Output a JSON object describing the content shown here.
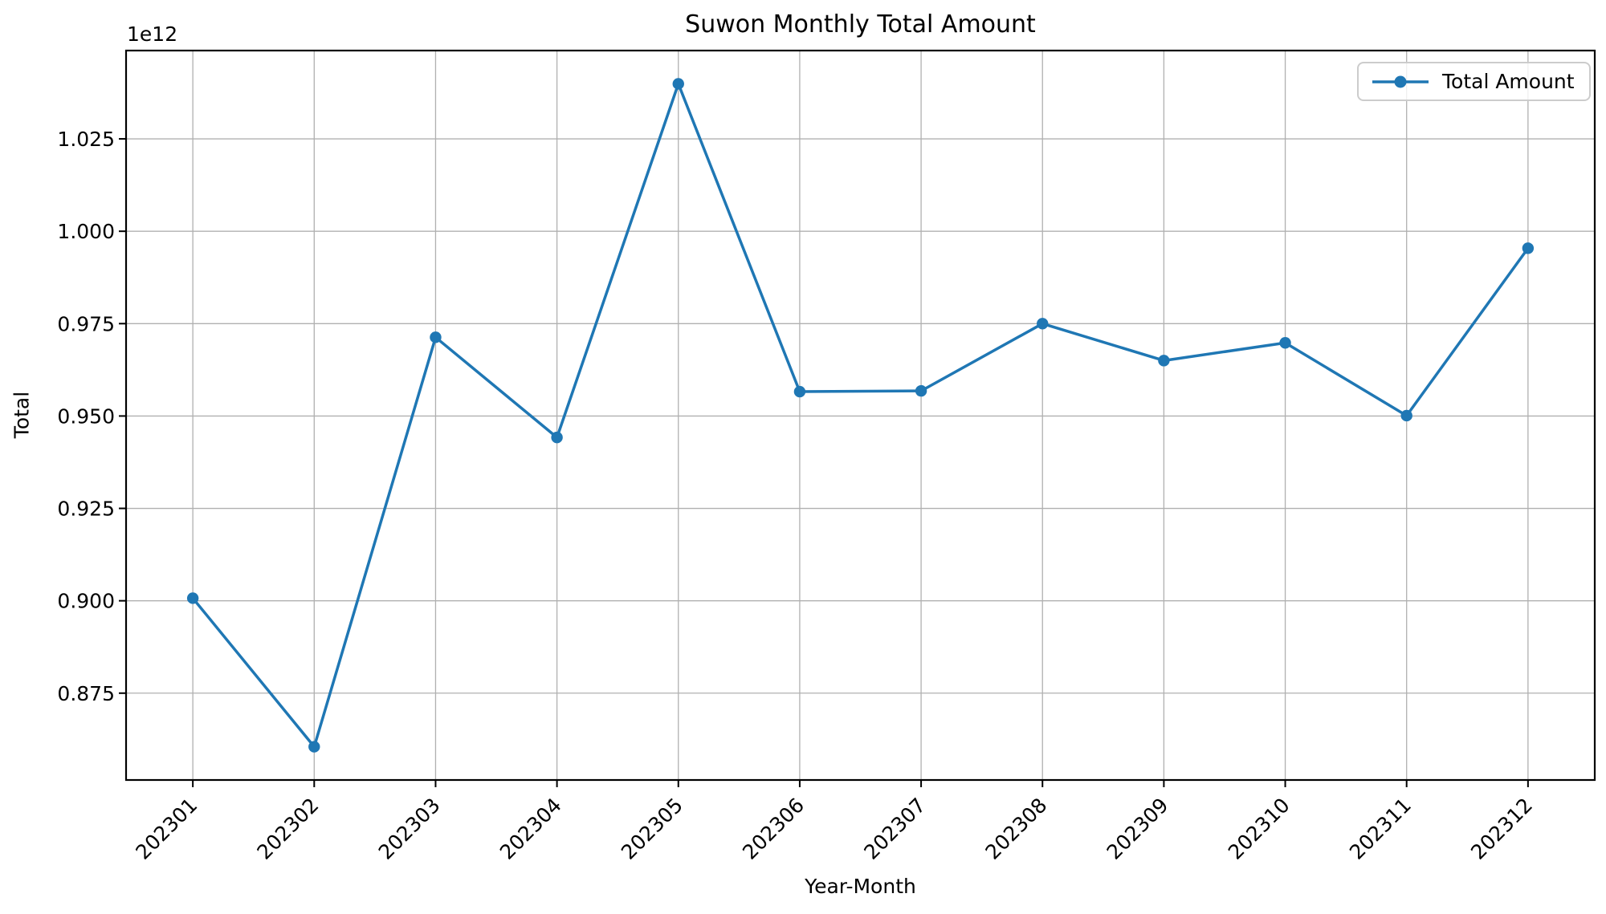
{
  "chart_data": {
    "type": "line",
    "title": "Suwon Monthly Total Amount",
    "xlabel": "Year-Month",
    "ylabel": "Total",
    "y_offset_text": "1e12",
    "categories": [
      "202301",
      "202302",
      "202303",
      "202304",
      "202305",
      "202306",
      "202307",
      "202308",
      "202309",
      "202310",
      "202311",
      "202312"
    ],
    "series": [
      {
        "name": "Total Amount",
        "color": "#1f77b4",
        "marker": "circle",
        "values_1e12": [
          0.9007,
          0.8605,
          0.9713,
          0.9442,
          1.0399,
          0.9566,
          0.9568,
          0.975,
          0.965,
          0.9698,
          0.9501,
          0.9954
        ]
      }
    ],
    "yticks_1e12": [
      0.875,
      0.9,
      0.925,
      0.95,
      0.975,
      1.0,
      1.025
    ],
    "ylim_1e12": [
      0.8515,
      1.0489
    ],
    "xlim": [
      -0.55,
      11.55
    ],
    "x_tick_rotation_deg": 45,
    "grid": true,
    "grid_color": "#b0b0b0",
    "axis_color": "#000000",
    "background_color": "#ffffff",
    "legend": {
      "label": "Total Amount",
      "position": "upper-right"
    }
  }
}
